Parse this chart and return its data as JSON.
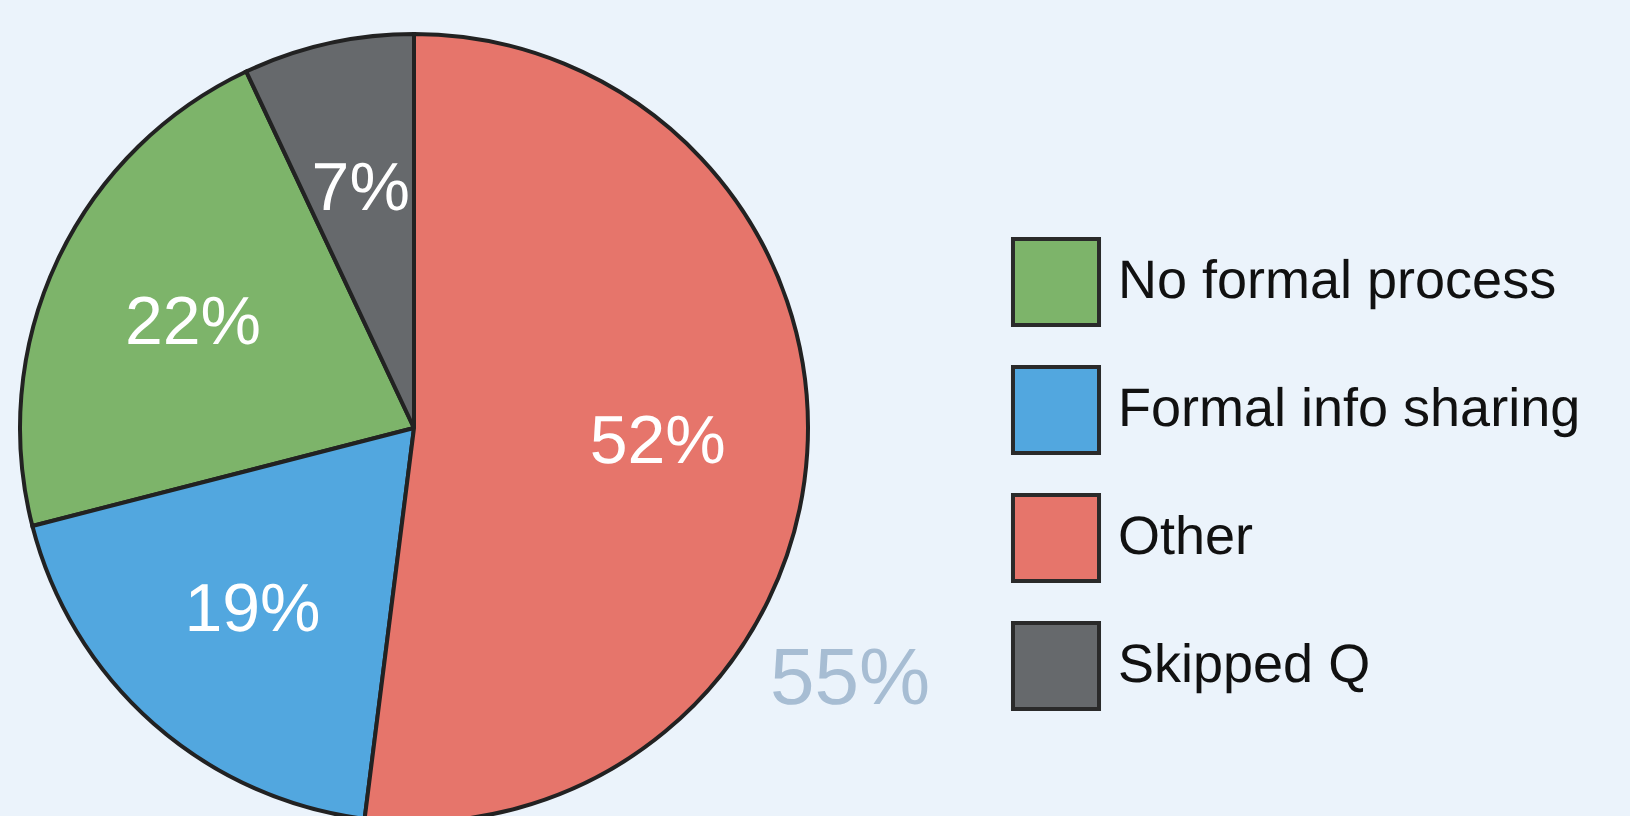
{
  "chart_data": {
    "type": "pie",
    "categories": [
      "No formal process",
      "Formal info sharing",
      "Other",
      "Skipped Q"
    ],
    "values": [
      22,
      19,
      52,
      7
    ],
    "colors": [
      "#7db46a",
      "#52a7df",
      "#e6756b",
      "#66696c"
    ],
    "value_labels": [
      "22%",
      "19%",
      "52%",
      "7%"
    ],
    "legend": "right",
    "annotations": [
      "55%"
    ]
  }
}
